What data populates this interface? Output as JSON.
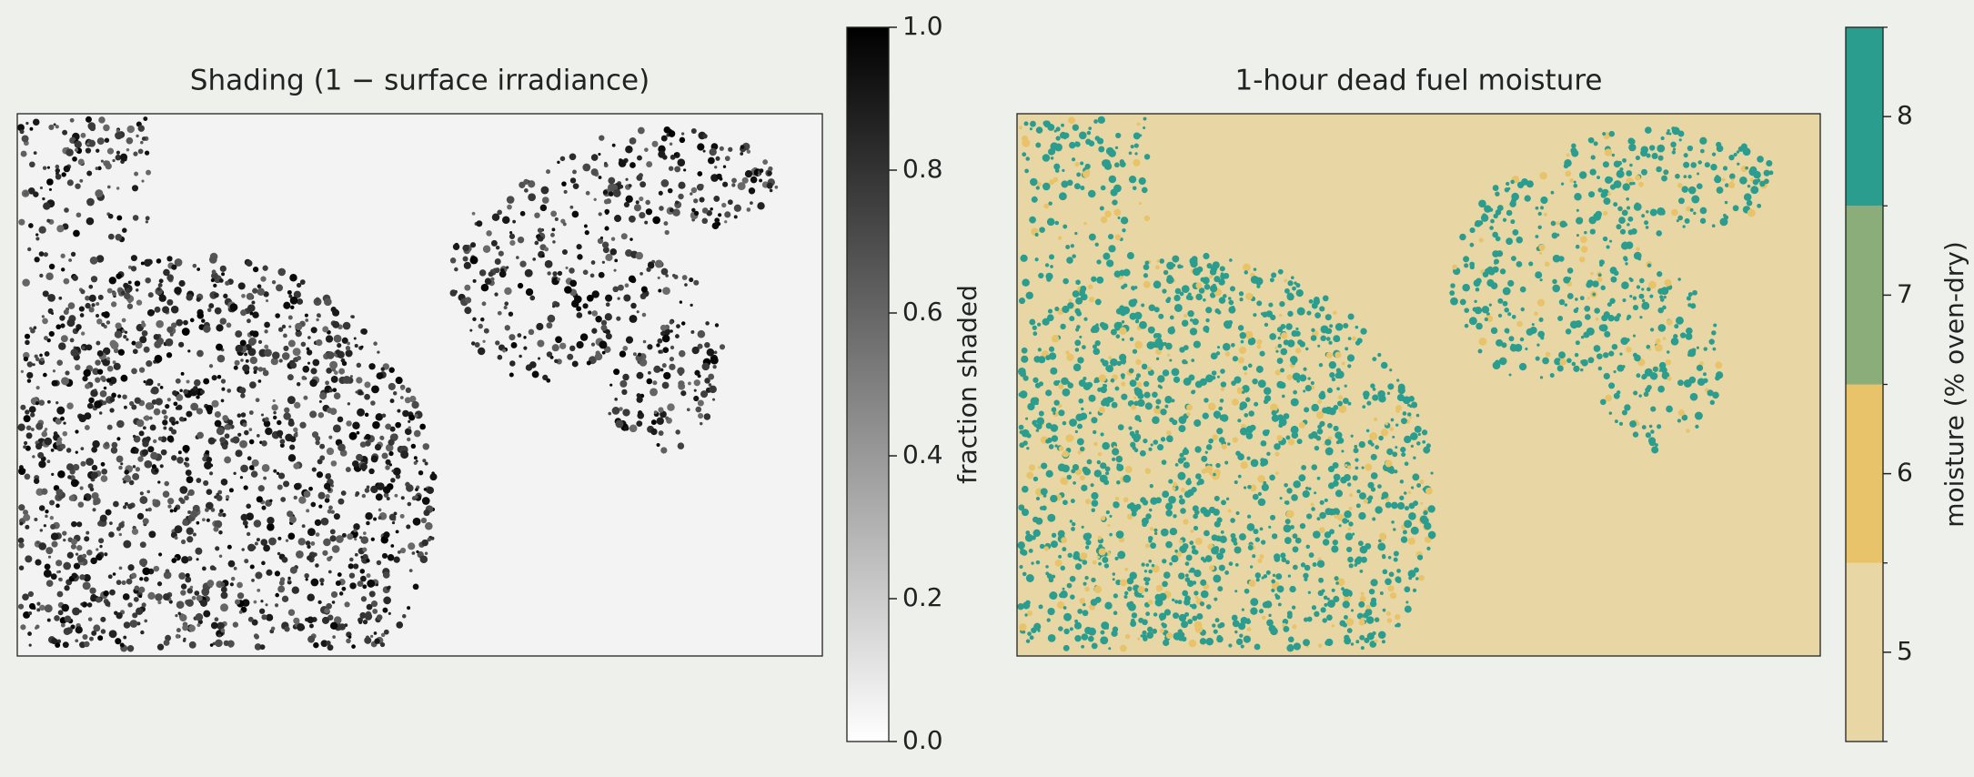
{
  "chart_data": [
    {
      "type": "image",
      "title": "Shading  (1 − surface irradiance)",
      "colorbar": {
        "label": "fraction shaded",
        "lim": [
          0,
          1
        ],
        "ticks": [
          {
            "value": 0,
            "label": "0.0"
          },
          0.2,
          0.4,
          0.6,
          0.8,
          {
            "value": 1,
            "label": "1.0"
          }
        ],
        "colors": [
          "#ffffff",
          "#000000"
        ]
      }
    },
    {
      "type": "image",
      "title": "1-hour dead fuel moisture",
      "colorbar": {
        "label": "moisture (% oven-dry)",
        "lim": [
          4.5,
          8.5
        ],
        "ticks": [
          5,
          6,
          7,
          8
        ],
        "levels": [
          4.5,
          5.5,
          6.5,
          7.5,
          8.5
        ],
        "colors": [
          "#e8d7a5",
          "#e8c36a",
          "#8aad7a",
          "#2a9d8f"
        ]
      }
    }
  ]
}
